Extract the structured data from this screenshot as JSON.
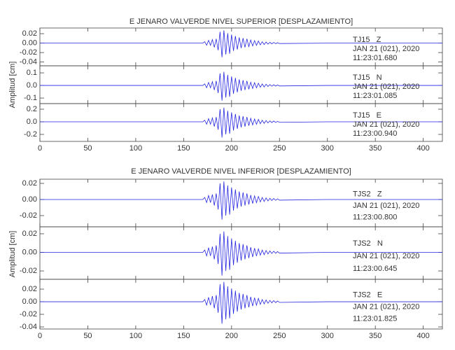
{
  "chart_data": [
    {
      "type": "line",
      "title": "E JENARO VALVERDE NIVEL SUPERIOR [DESPLAZAMIENTO]",
      "y_label": "Amplitud [cm]",
      "xlim": [
        0,
        420
      ],
      "xticks": [
        0,
        50,
        100,
        150,
        200,
        250,
        300,
        350,
        400
      ],
      "x": [
        0,
        170,
        172,
        174,
        176,
        178,
        180,
        182,
        184,
        186,
        188,
        190,
        192,
        194,
        196,
        198,
        200,
        202,
        204,
        206,
        208,
        210,
        212,
        214,
        216,
        218,
        220,
        222,
        224,
        226,
        228,
        230,
        232,
        234,
        236,
        238,
        240,
        242,
        244,
        246,
        248,
        250,
        300,
        420
      ],
      "panels": [
        {
          "ylim": [
            -0.048,
            0.032
          ],
          "yticks": [
            0.02,
            {
              "value": 0,
              "label": "0.00"
            },
            -0.02,
            -0.04
          ],
          "annotations": [
            "TJ15   Z",
            "JAN 21 (021), 2020",
            "11:23:01.680"
          ],
          "series": [
            {
              "color": "#2626e0",
              "values": [
                0,
                0,
                0.003,
                -0.0045,
                0.006,
                -0.0045,
                0.0075,
                -0.009,
                0.009,
                -0.015,
                0.024,
                -0.03,
                0.027,
                -0.024,
                0.021,
                -0.0225,
                0.018,
                -0.0165,
                0.015,
                -0.0135,
                0.012,
                -0.0105,
                0.0105,
                -0.009,
                0.009,
                -0.0075,
                0.0066,
                -0.006,
                0.0054,
                -0.0048,
                0.0045,
                -0.0036,
                0.003,
                -0.003,
                0.0024,
                -0.0021,
                0.0018,
                -0.0015,
                0.0015,
                -0.0012,
                0.0009,
                -0.0009,
                0,
                0
              ]
            }
          ]
        },
        {
          "ylim": [
            -0.144,
            0.156
          ],
          "yticks": [
            0.1,
            {
              "value": 0,
              "label": "0.0"
            },
            -0.1
          ],
          "annotations": [
            "TJ15   N",
            "JAN 21 (021), 2020",
            "11:23:01.085"
          ],
          "series": [
            {
              "color": "#2626e0",
              "values": [
                0,
                0,
                0.012,
                -0.018,
                0.024,
                -0.018,
                0.03,
                -0.036,
                0.036,
                -0.06,
                0.096,
                -0.12,
                0.108,
                -0.096,
                0.084,
                -0.09,
                0.072,
                -0.066,
                0.06,
                -0.054,
                0.048,
                -0.042,
                0.042,
                -0.036,
                0.036,
                -0.03,
                0.026,
                -0.024,
                0.022,
                -0.019,
                0.018,
                -0.014,
                0.012,
                -0.012,
                0.01,
                -0.008,
                0.007,
                -0.006,
                0.006,
                -0.005,
                0.004,
                -0.004,
                0,
                0
              ]
            }
          ]
        },
        {
          "ylim": [
            -0.311,
            0.289
          ],
          "yticks": [
            0.2,
            {
              "value": 0,
              "label": "0.0"
            },
            -0.2
          ],
          "annotations": [
            "TJ15   E",
            "JAN 21 (021), 2020",
            "11:23:00.940"
          ],
          "series": [
            {
              "color": "#2626e0",
              "values": [
                0,
                0,
                0.025,
                -0.038,
                0.05,
                -0.038,
                0.062,
                -0.075,
                0.075,
                -0.125,
                0.2,
                -0.25,
                0.225,
                -0.2,
                0.175,
                -0.188,
                0.15,
                -0.138,
                0.125,
                -0.112,
                0.1,
                -0.088,
                0.088,
                -0.075,
                0.075,
                -0.062,
                0.055,
                -0.05,
                0.045,
                -0.04,
                0.038,
                -0.03,
                0.025,
                -0.025,
                0.02,
                -0.018,
                0.015,
                -0.012,
                0.012,
                -0.01,
                0.008,
                -0.008,
                0,
                0
              ]
            }
          ]
        }
      ]
    },
    {
      "type": "line",
      "title": "E JENARO VALVERDE NIVEL INFERIOR [DESPLAZAMIENTO]",
      "y_label": "Amplitud [cm]",
      "xlim": [
        0,
        420
      ],
      "xticks": [
        0,
        50,
        100,
        150,
        200,
        250,
        300,
        350,
        400
      ],
      "x": [
        0,
        170,
        172,
        174,
        176,
        178,
        180,
        182,
        184,
        186,
        188,
        190,
        192,
        194,
        196,
        198,
        200,
        202,
        204,
        206,
        208,
        210,
        212,
        214,
        216,
        218,
        220,
        222,
        224,
        226,
        228,
        230,
        232,
        234,
        236,
        238,
        240,
        242,
        244,
        246,
        248,
        250,
        300,
        420
      ],
      "panels": [
        {
          "ylim": [
            -0.0339,
            0.0252
          ],
          "yticks": [
            0.02,
            {
              "value": 0,
              "label": "0.00"
            },
            -0.02
          ],
          "annotations": [
            "TJS2   Z",
            "JAN 21 (021), 2020",
            "11:23:00.800"
          ],
          "series": [
            {
              "color": "#2626e0",
              "values": [
                0,
                0,
                0.0025,
                -0.0038,
                0.005,
                -0.0038,
                0.0062,
                -0.0075,
                0.0075,
                -0.0125,
                0.02,
                -0.025,
                0.0225,
                -0.02,
                0.0175,
                -0.0188,
                0.015,
                -0.0138,
                0.0125,
                -0.0112,
                0.01,
                -0.0088,
                0.0088,
                -0.0075,
                0.0075,
                -0.0062,
                0.0055,
                -0.005,
                0.0045,
                -0.004,
                0.0038,
                -0.003,
                0.0025,
                -0.0025,
                0.002,
                -0.0018,
                0.0015,
                -0.0012,
                0.0012,
                -0.001,
                0.0008,
                -0.0008,
                0,
                0
              ]
            }
          ]
        },
        {
          "ylim": [
            -0.029,
            0.0275
          ],
          "yticks": [
            0.02,
            {
              "value": 0,
              "label": "0.00"
            },
            -0.02
          ],
          "annotations": [
            "TJS2   N",
            "JAN 21 (021), 2020",
            "11:23:00.645"
          ],
          "series": [
            {
              "color": "#2626e0",
              "values": [
                0,
                0,
                0.0025,
                -0.0038,
                0.005,
                -0.0038,
                0.0062,
                -0.0075,
                0.0075,
                -0.0125,
                0.02,
                -0.025,
                0.0225,
                -0.02,
                0.0175,
                -0.0188,
                0.015,
                -0.0138,
                0.0125,
                -0.0112,
                0.01,
                -0.0088,
                0.0088,
                -0.0075,
                0.0075,
                -0.0062,
                0.0055,
                -0.005,
                0.0045,
                -0.004,
                0.0038,
                -0.003,
                0.0025,
                -0.0025,
                0.002,
                -0.0018,
                0.0015,
                -0.0012,
                0.0012,
                -0.001,
                0.0008,
                -0.0008,
                0,
                0
              ]
            }
          ]
        },
        {
          "ylim": [
            -0.0433,
            0.0356
          ],
          "yticks": [
            0.02,
            {
              "value": 0,
              "label": "0.00"
            },
            -0.02,
            -0.04
          ],
          "annotations": [
            "TJS2   E",
            "JAN 21 (021), 2020",
            "11:23:01.825"
          ],
          "series": [
            {
              "color": "#2626e0",
              "values": [
                0,
                0,
                0.0035,
                -0.0053,
                0.007,
                -0.0053,
                0.0088,
                -0.0105,
                0.0105,
                -0.0175,
                0.028,
                -0.035,
                0.0315,
                -0.028,
                0.0245,
                -0.0263,
                0.021,
                -0.0193,
                0.0175,
                -0.0158,
                0.014,
                -0.0123,
                0.0123,
                -0.0105,
                0.0105,
                -0.0088,
                0.0077,
                -0.007,
                0.0063,
                -0.0056,
                0.0053,
                -0.0042,
                0.0035,
                -0.0035,
                0.0028,
                -0.0025,
                0.0021,
                -0.0017,
                0.0017,
                -0.0014,
                0.0011,
                -0.0011,
                0,
                0
              ]
            }
          ]
        }
      ]
    }
  ]
}
